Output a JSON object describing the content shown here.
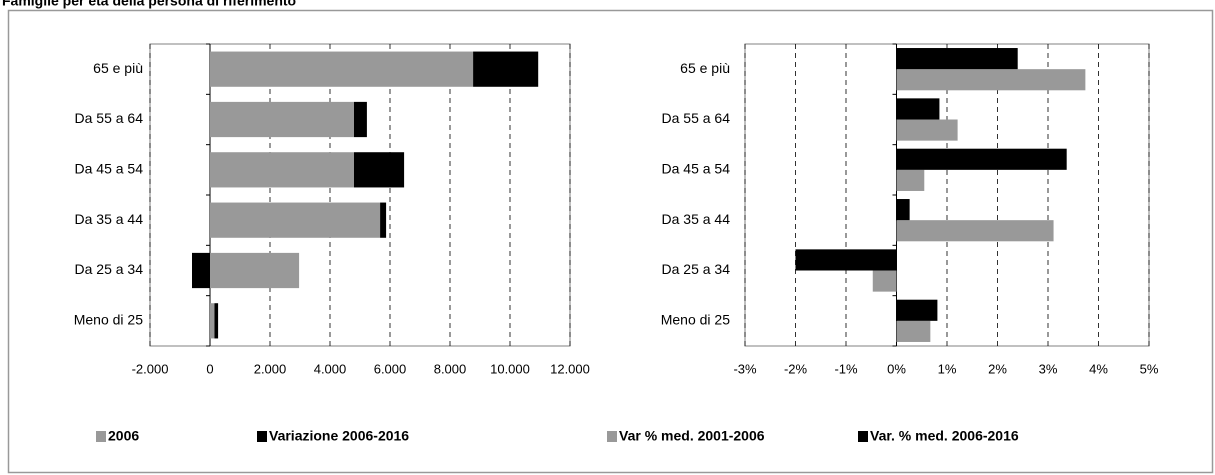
{
  "title": "Famiglie per età della persona di riferimento",
  "chart_data": [
    {
      "type": "bar",
      "orientation": "horizontal",
      "stacked": true,
      "grid": true,
      "categories": [
        "65 e più",
        "Da 55 a 64",
        "Da 45 a 54",
        "Da 35 a 44",
        "Da 25 a 34",
        "Meno di 25"
      ],
      "series": [
        {
          "name": "2006",
          "color": "#999999",
          "values": [
            8770,
            4800,
            4800,
            5670,
            2970,
            150
          ]
        },
        {
          "name": "Variazione 2006-2016",
          "color": "#000000",
          "values": [
            2170,
            430,
            1670,
            200,
            -600,
            120
          ]
        }
      ],
      "xlim": [
        -2000,
        12000
      ],
      "xticks": [
        {
          "value": -2000,
          "label": "-2.000"
        },
        0,
        {
          "value": 2000,
          "label": "2.000"
        },
        {
          "value": 4000,
          "label": "4.000"
        },
        {
          "value": 6000,
          "label": "6.000"
        },
        {
          "value": 8000,
          "label": "8.000"
        },
        {
          "value": 10000,
          "label": "10.000"
        },
        {
          "value": 12000,
          "label": "12.000"
        }
      ]
    },
    {
      "type": "bar",
      "orientation": "horizontal",
      "stacked": false,
      "grid": true,
      "categories": [
        "65 e più",
        "Da 55 a 64",
        "Da 45 a 54",
        "Da 35 a 44",
        "Da 25 a 34",
        "Meno di 25"
      ],
      "series": [
        {
          "name": "Var % med. 2001-2006",
          "color": "#999999",
          "values": [
            3.74,
            1.21,
            0.55,
            3.11,
            -0.47,
            0.67
          ]
        },
        {
          "name": "Var. % med. 2006-2016",
          "color": "#000000",
          "values": [
            2.4,
            0.85,
            3.37,
            0.26,
            -2.0,
            0.81
          ]
        }
      ],
      "xlim": [
        -3,
        5
      ],
      "xticks": [
        {
          "value": -3,
          "label": "-3%"
        },
        {
          "value": -2,
          "label": "-2%"
        },
        {
          "value": -1,
          "label": "-1%"
        },
        {
          "value": 0,
          "label": "0%"
        },
        {
          "value": 1,
          "label": "1%"
        },
        {
          "value": 2,
          "label": "2%"
        },
        {
          "value": 3,
          "label": "3%"
        },
        {
          "value": 4,
          "label": "4%"
        },
        {
          "value": 5,
          "label": "5%"
        }
      ]
    }
  ]
}
